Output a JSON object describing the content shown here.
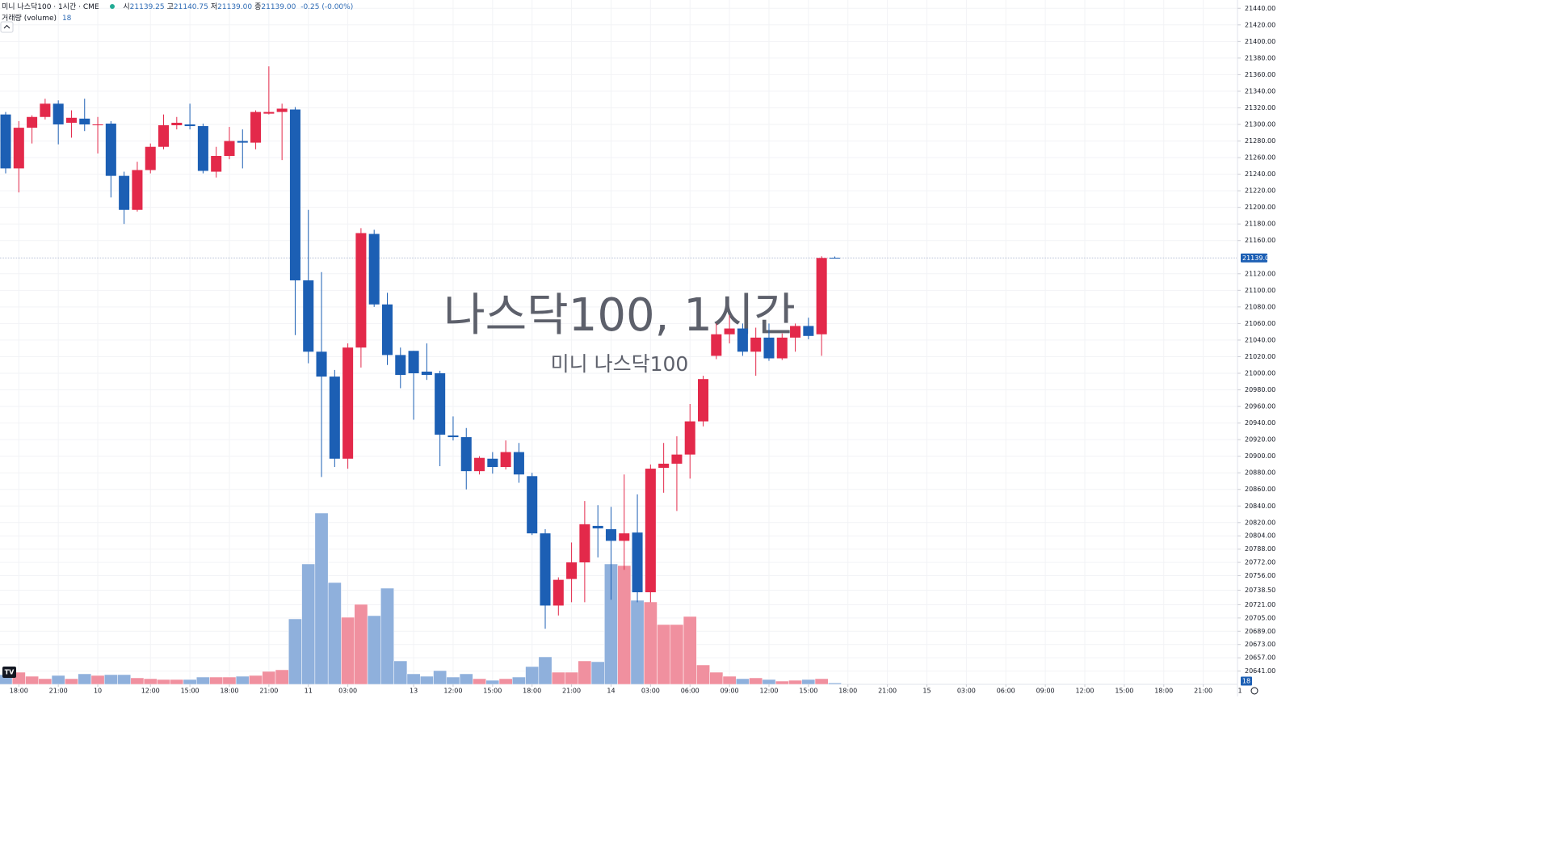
{
  "header": {
    "symbol": "미니 나스닥100 · 1시간 · CME",
    "ohlc": [
      {
        "label": "시",
        "value": "21139.25"
      },
      {
        "label": "고",
        "value": "21140.75"
      },
      {
        "label": "저",
        "value": "21139.00"
      },
      {
        "label": "종",
        "value": "21139.00"
      }
    ],
    "change": "-0.25 (-0.00%)",
    "volume_label": "거래량 (volume)"
  },
  "chart_data": {
    "type": "candlestick",
    "watermark": "나스닥100, 1시간",
    "watermark_subtitle": "미니 나스닥100",
    "open": [
      21312,
      21247,
      21296,
      21309,
      21325,
      21302,
      21307,
      21299,
      21301,
      21238,
      21197,
      21245,
      21273,
      21299,
      21300,
      21298,
      21243,
      21262,
      21280,
      21278,
      21313,
      21315,
      21318,
      21112,
      21026,
      20996,
      20897,
      21031,
      21168,
      21083,
      21022,
      21027,
      21002,
      21000,
      20925,
      20923,
      20882,
      20897,
      20887,
      20905,
      20876,
      20807,
      20720,
      20752,
      20772,
      20816,
      20812,
      20798,
      20808,
      20736,
      20886,
      20891,
      20902,
      20942,
      21021,
      21047,
      21054,
      21026,
      21043,
      21018,
      21043,
      21057,
      21047,
      21139.25
    ],
    "high": [
      21315,
      21304,
      21311,
      21331,
      21329,
      21317,
      21331,
      21309,
      21304,
      21243,
      21255,
      21277,
      21312,
      21309,
      21325,
      21301,
      21273,
      21297,
      21294,
      21317,
      21370,
      21325,
      21321,
      21197,
      21122,
      21004,
      21036,
      21175,
      21173,
      21097,
      21031,
      21027,
      21036,
      21003,
      20948,
      20934,
      20900,
      20905,
      20919,
      20916,
      20880,
      20812,
      20754,
      20796,
      20846,
      20841,
      20839,
      20878,
      20854,
      20890,
      20916,
      20924,
      20963,
      20997,
      21060,
      21070,
      21060,
      21055,
      21060,
      21048,
      21060,
      21067,
      21141,
      21140.75
    ],
    "low": [
      21241,
      21218,
      21277,
      21306,
      21276,
      21284,
      21292,
      21265,
      21212,
      21180,
      21195,
      21241,
      21270,
      21294,
      21294,
      21241,
      21236,
      21258,
      21247,
      21270,
      21312,
      21257,
      21046,
      21012,
      20875,
      20887,
      20885,
      21007,
      21080,
      21010,
      20982,
      20944,
      20992,
      20888,
      20919,
      20860,
      20878,
      20879,
      20884,
      20868,
      20805,
      20692,
      20708,
      20724,
      20724,
      20778,
      20727,
      20763,
      20724,
      20724,
      20856,
      20834,
      20873,
      20936,
      21017,
      21036,
      21021,
      20997,
      21015,
      21016,
      21026,
      21041,
      21021,
      21139
    ],
    "close": [
      21247,
      21296,
      21309,
      21325,
      21300,
      21308,
      21300,
      21300,
      21238,
      21197,
      21245,
      21273,
      21299,
      21302,
      21298,
      21244,
      21262,
      21280,
      21278,
      21315,
      21315,
      21319,
      21112,
      21026,
      20996,
      20897,
      21031,
      21169,
      21083,
      21022,
      20998,
      21000,
      20998,
      20926,
      20923,
      20882,
      20898,
      20887,
      20905,
      20878,
      20807,
      20720,
      20751,
      20772,
      20818,
      20813,
      20798,
      20807,
      20736,
      20885,
      20891,
      20902,
      20942,
      20993,
      21047,
      21054,
      21026,
      21043,
      21018,
      21043,
      21057,
      21045,
      21139,
      21139
    ],
    "volume": [
      120,
      150,
      100,
      70,
      110,
      70,
      130,
      110,
      120,
      120,
      80,
      70,
      60,
      60,
      60,
      90,
      90,
      90,
      100,
      110,
      160,
      180,
      810,
      1490,
      2120,
      1260,
      830,
      990,
      850,
      1190,
      290,
      130,
      100,
      170,
      90,
      130,
      70,
      50,
      70,
      90,
      220,
      340,
      150,
      150,
      290,
      280,
      1490,
      1470,
      1040,
      1020,
      740,
      740,
      840,
      240,
      150,
      100,
      70,
      80,
      60,
      40,
      50,
      60,
      70,
      18
    ],
    "up_color": "#e3294a",
    "down_color": "#1c5fb4",
    "volume_up_color": "#f0909f",
    "volume_down_color": "#8fb0dc",
    "volume_ylim": [
      0,
      8470
    ],
    "last_price": {
      "value": 21139,
      "label": "21139.00"
    },
    "ylim": [
      20625,
      21450
    ],
    "yticks": [
      {
        "value": 21440,
        "label": "21440.00"
      },
      {
        "value": 21420,
        "label": "21420.00"
      },
      {
        "value": 21400,
        "label": "21400.00"
      },
      {
        "value": 21380,
        "label": "21380.00"
      },
      {
        "value": 21360,
        "label": "21360.00"
      },
      {
        "value": 21340,
        "label": "21340.00"
      },
      {
        "value": 21320,
        "label": "21320.00"
      },
      {
        "value": 21300,
        "label": "21300.00"
      },
      {
        "value": 21280,
        "label": "21280.00"
      },
      {
        "value": 21260,
        "label": "21260.00"
      },
      {
        "value": 21240,
        "label": "21240.00"
      },
      {
        "value": 21220,
        "label": "21220.00"
      },
      {
        "value": 21200,
        "label": "21200.00"
      },
      {
        "value": 21180,
        "label": "21180.00"
      },
      {
        "value": 21160,
        "label": "21160.00"
      },
      {
        "value": 21120,
        "label": "21120.00"
      },
      {
        "value": 21100,
        "label": "21100.00"
      },
      {
        "value": 21080,
        "label": "21080.00"
      },
      {
        "value": 21060,
        "label": "21060.00"
      },
      {
        "value": 21040,
        "label": "21040.00"
      },
      {
        "value": 21020,
        "label": "21020.00"
      },
      {
        "value": 21000,
        "label": "21000.00"
      },
      {
        "value": 20980,
        "label": "20980.00"
      },
      {
        "value": 20960,
        "label": "20960.00"
      },
      {
        "value": 20940,
        "label": "20940.00"
      },
      {
        "value": 20920,
        "label": "20920.00"
      },
      {
        "value": 20900,
        "label": "20900.00"
      },
      {
        "value": 20880,
        "label": "20880.00"
      },
      {
        "value": 20860,
        "label": "20860.00"
      },
      {
        "value": 20840,
        "label": "20840.00"
      },
      {
        "value": 20820,
        "label": "20820.00"
      },
      {
        "value": 20804,
        "label": "20804.00"
      },
      {
        "value": 20788,
        "label": "20788.00"
      },
      {
        "value": 20772,
        "label": "20772.00"
      },
      {
        "value": 20756,
        "label": "20756.00"
      },
      {
        "value": 20738.5,
        "label": "20738.50"
      },
      {
        "value": 20721,
        "label": "20721.00"
      },
      {
        "value": 20705,
        "label": "20705.00"
      },
      {
        "value": 20689,
        "label": "20689.00"
      },
      {
        "value": 20673,
        "label": "20673.00"
      },
      {
        "value": 20657,
        "label": "20657.00"
      },
      {
        "value": 20641,
        "label": "20641.00"
      }
    ],
    "xlim": [
      -0.43,
      93.6
    ],
    "xticks": [
      {
        "value": 1,
        "label": "18:00"
      },
      {
        "value": 4,
        "label": "21:00"
      },
      {
        "value": 7,
        "label": "10"
      },
      {
        "value": 11,
        "label": "12:00"
      },
      {
        "value": 14,
        "label": "15:00"
      },
      {
        "value": 17,
        "label": "18:00"
      },
      {
        "value": 20,
        "label": "21:00"
      },
      {
        "value": 23,
        "label": "11"
      },
      {
        "value": 26,
        "label": "03:00"
      },
      {
        "value": 31,
        "label": "13"
      },
      {
        "value": 34,
        "label": "12:00"
      },
      {
        "value": 37,
        "label": "15:00"
      },
      {
        "value": 40,
        "label": "18:00"
      },
      {
        "value": 43,
        "label": "21:00"
      },
      {
        "value": 46,
        "label": "14"
      },
      {
        "value": 49,
        "label": "03:00"
      },
      {
        "value": 52,
        "label": "06:00"
      },
      {
        "value": 55,
        "label": "09:00"
      },
      {
        "value": 58,
        "label": "12:00"
      },
      {
        "value": 61,
        "label": "15:00"
      },
      {
        "value": 64,
        "label": "18:00"
      },
      {
        "value": 67,
        "label": "21:00"
      },
      {
        "value": 70,
        "label": "15"
      },
      {
        "value": 73,
        "label": "03:00"
      },
      {
        "value": 76,
        "label": "06:00"
      },
      {
        "value": 79,
        "label": "09:00"
      },
      {
        "value": 82,
        "label": "12:00"
      },
      {
        "value": 85,
        "label": "15:00"
      },
      {
        "value": 88,
        "label": "18:00"
      },
      {
        "value": 91,
        "label": "21:00"
      }
    ],
    "axis_corner": "1",
    "grid": true
  }
}
